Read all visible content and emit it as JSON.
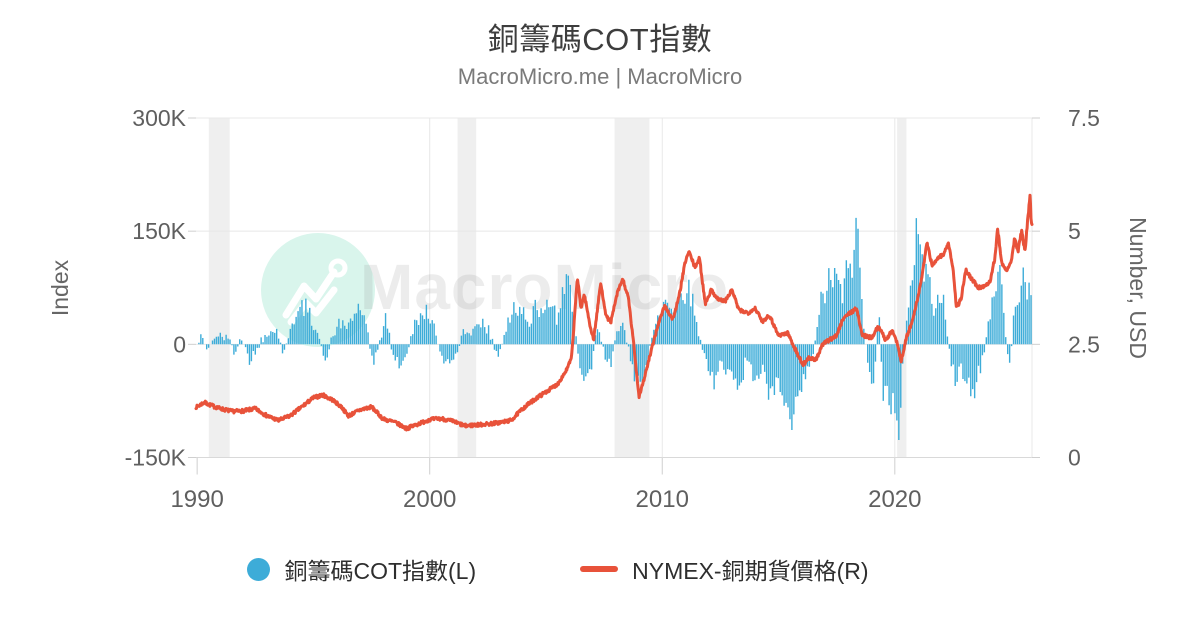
{
  "header": {
    "title": "銅籌碼COT指數",
    "subtitle": "MacroMicro.me | MacroMicro"
  },
  "watermark": {
    "text": "MacroMicro",
    "icon": "macromicro-logo"
  },
  "legend": {
    "items": [
      {
        "label": "銅籌碼COT指數(L)",
        "marker": "circle",
        "color": "#3dacd8"
      },
      {
        "label": "NYMEX-銅期貨價格(R)",
        "marker": "line",
        "color": "#e8523a"
      }
    ]
  },
  "colors": {
    "bar": "#3dacd8",
    "line": "#e8523a",
    "grid": "#e8e8e8",
    "axis_line": "#d9d9d9",
    "tick_mark": "#cfcfcf",
    "recession_band": "#efefef",
    "axis_text": "#5f5f5f",
    "axis_title_text": "#666666",
    "title": "#3d3d3d",
    "subtitle": "#7a7a7a",
    "watermark_circle": "#d9f5ec",
    "watermark_icon": "#ffffff",
    "watermark_text": "#8a8a8a"
  },
  "chart_data": {
    "type": "bar+line combo, dual axis",
    "title": "銅籌碼COT指數",
    "subtitle": "MacroMicro.me | MacroMicro",
    "x_axis": {
      "range": [
        1989.95,
        2025.9
      ],
      "ticks": [
        {
          "label": "1990",
          "value": 1990
        },
        {
          "label": "2000",
          "value": 2000
        },
        {
          "label": "2010",
          "value": 2010
        },
        {
          "label": "2020",
          "value": 2020
        }
      ]
    },
    "left_axis": {
      "title": "Index",
      "unit": "thousand contracts",
      "range": [
        -150,
        300
      ],
      "ticks": [
        {
          "label": "300K",
          "value": 300
        },
        {
          "label": "150K",
          "value": 150
        },
        {
          "label": "0",
          "value": 0
        },
        {
          "label": "-150K",
          "value": -150
        }
      ]
    },
    "right_axis": {
      "title": "Number, USD",
      "range": [
        0,
        7.5
      ],
      "ticks": [
        {
          "label": "7.5",
          "value": 7.5
        },
        {
          "label": "5",
          "value": 5
        },
        {
          "label": "2.5",
          "value": 2.5
        },
        {
          "label": "0",
          "value": 0
        }
      ]
    },
    "recession_bands": [
      [
        1990.5,
        1991.4
      ],
      [
        2001.2,
        2002.0
      ],
      [
        2007.95,
        2009.45
      ],
      [
        2020.1,
        2020.5
      ]
    ],
    "series": [
      {
        "name": "銅籌碼COT指數(L)",
        "type": "bar",
        "axis": "left",
        "color": "#3dacd8",
        "points": [
          [
            1990.0,
            4
          ],
          [
            1990.2,
            9
          ],
          [
            1990.45,
            -8
          ],
          [
            1990.7,
            6
          ],
          [
            1991.0,
            14
          ],
          [
            1991.3,
            8
          ],
          [
            1991.6,
            -10
          ],
          [
            1991.9,
            12
          ],
          [
            1992.2,
            -22
          ],
          [
            1992.5,
            -12
          ],
          [
            1992.8,
            8
          ],
          [
            1993.1,
            18
          ],
          [
            1993.4,
            24
          ],
          [
            1993.7,
            -12
          ],
          [
            1994.0,
            18
          ],
          [
            1994.3,
            42
          ],
          [
            1994.6,
            55
          ],
          [
            1994.9,
            38
          ],
          [
            1995.2,
            14
          ],
          [
            1995.5,
            -22
          ],
          [
            1995.8,
            10
          ],
          [
            1996.1,
            28
          ],
          [
            1996.4,
            18
          ],
          [
            1996.7,
            38
          ],
          [
            1997.0,
            46
          ],
          [
            1997.3,
            22
          ],
          [
            1997.6,
            -28
          ],
          [
            1997.9,
            10
          ],
          [
            1998.1,
            34
          ],
          [
            1998.4,
            -8
          ],
          [
            1998.7,
            -30
          ],
          [
            1999.0,
            -18
          ],
          [
            1999.3,
            26
          ],
          [
            1999.6,
            36
          ],
          [
            1999.9,
            44
          ],
          [
            2000.2,
            22
          ],
          [
            2000.5,
            -18
          ],
          [
            2000.8,
            -26
          ],
          [
            2001.1,
            -20
          ],
          [
            2001.4,
            12
          ],
          [
            2001.7,
            18
          ],
          [
            2002.0,
            26
          ],
          [
            2002.3,
            30
          ],
          [
            2002.6,
            14
          ],
          [
            2002.9,
            -16
          ],
          [
            2003.2,
            12
          ],
          [
            2003.5,
            42
          ],
          [
            2003.8,
            54
          ],
          [
            2004.0,
            48
          ],
          [
            2004.3,
            22
          ],
          [
            2004.6,
            52
          ],
          [
            2004.9,
            40
          ],
          [
            2005.2,
            55
          ],
          [
            2005.5,
            35
          ],
          [
            2005.75,
            65
          ],
          [
            2005.95,
            82
          ],
          [
            2006.15,
            60
          ],
          [
            2006.4,
            -25
          ],
          [
            2006.7,
            -40
          ],
          [
            2006.95,
            -28
          ],
          [
            2007.2,
            25
          ],
          [
            2007.5,
            -12
          ],
          [
            2007.8,
            -30
          ],
          [
            2008.1,
            28
          ],
          [
            2008.35,
            20
          ],
          [
            2008.6,
            -15
          ],
          [
            2008.8,
            -50
          ],
          [
            2009.05,
            -62
          ],
          [
            2009.3,
            -30
          ],
          [
            2009.6,
            15
          ],
          [
            2009.9,
            45
          ],
          [
            2010.2,
            62
          ],
          [
            2010.5,
            40
          ],
          [
            2010.8,
            70
          ],
          [
            2011.05,
            78
          ],
          [
            2011.3,
            55
          ],
          [
            2011.6,
            15
          ],
          [
            2011.9,
            -25
          ],
          [
            2012.2,
            -48
          ],
          [
            2012.5,
            -20
          ],
          [
            2012.8,
            -38
          ],
          [
            2013.1,
            -62
          ],
          [
            2013.4,
            -45
          ],
          [
            2013.7,
            -18
          ],
          [
            2014.0,
            -52
          ],
          [
            2014.3,
            -24
          ],
          [
            2014.6,
            -60
          ],
          [
            2015.0,
            -48
          ],
          [
            2015.3,
            -74
          ],
          [
            2015.6,
            -86
          ],
          [
            2015.9,
            -56
          ],
          [
            2016.2,
            -40
          ],
          [
            2016.5,
            -12
          ],
          [
            2016.8,
            52
          ],
          [
            2017.1,
            78
          ],
          [
            2017.4,
            98
          ],
          [
            2017.7,
            62
          ],
          [
            2018.0,
            96
          ],
          [
            2018.25,
            128
          ],
          [
            2018.45,
            140
          ],
          [
            2018.65,
            30
          ],
          [
            2018.9,
            -48
          ],
          [
            2019.1,
            -72
          ],
          [
            2019.3,
            52
          ],
          [
            2019.5,
            -64
          ],
          [
            2019.75,
            -88
          ],
          [
            2020.0,
            -70
          ],
          [
            2020.15,
            -108
          ],
          [
            2020.35,
            -30
          ],
          [
            2020.55,
            48
          ],
          [
            2020.75,
            98
          ],
          [
            2020.95,
            158
          ],
          [
            2021.15,
            120
          ],
          [
            2021.4,
            86
          ],
          [
            2021.65,
            56
          ],
          [
            2021.9,
            74
          ],
          [
            2022.15,
            40
          ],
          [
            2022.4,
            -20
          ],
          [
            2022.6,
            -52
          ],
          [
            2022.85,
            -28
          ],
          [
            2023.1,
            -58
          ],
          [
            2023.35,
            -66
          ],
          [
            2023.6,
            -34
          ],
          [
            2023.85,
            -12
          ],
          [
            2024.1,
            42
          ],
          [
            2024.35,
            84
          ],
          [
            2024.55,
            96
          ],
          [
            2024.75,
            20
          ],
          [
            2024.9,
            -35
          ],
          [
            2025.1,
            30
          ],
          [
            2025.3,
            58
          ],
          [
            2025.5,
            92
          ],
          [
            2025.7,
            62
          ],
          [
            2025.87,
            72
          ]
        ]
      },
      {
        "name": "NYMEX-銅期貨價格(R)",
        "type": "line",
        "axis": "right",
        "color": "#e8523a",
        "points": [
          [
            1990.0,
            1.12
          ],
          [
            1990.3,
            1.22
          ],
          [
            1990.6,
            1.15
          ],
          [
            1991.0,
            1.08
          ],
          [
            1991.5,
            1.02
          ],
          [
            1992.0,
            1.03
          ],
          [
            1992.5,
            1.08
          ],
          [
            1993.0,
            0.92
          ],
          [
            1993.5,
            0.82
          ],
          [
            1994.0,
            0.92
          ],
          [
            1994.5,
            1.12
          ],
          [
            1995.0,
            1.32
          ],
          [
            1995.4,
            1.38
          ],
          [
            1995.8,
            1.28
          ],
          [
            1996.2,
            1.12
          ],
          [
            1996.5,
            0.92
          ],
          [
            1997.0,
            1.05
          ],
          [
            1997.5,
            1.12
          ],
          [
            1998.0,
            0.85
          ],
          [
            1998.5,
            0.78
          ],
          [
            1999.0,
            0.64
          ],
          [
            1999.5,
            0.74
          ],
          [
            2000.0,
            0.84
          ],
          [
            2000.5,
            0.86
          ],
          [
            2001.0,
            0.8
          ],
          [
            2001.5,
            0.7
          ],
          [
            2002.0,
            0.72
          ],
          [
            2002.5,
            0.74
          ],
          [
            2003.0,
            0.77
          ],
          [
            2003.5,
            0.82
          ],
          [
            2004.0,
            1.08
          ],
          [
            2004.5,
            1.28
          ],
          [
            2005.0,
            1.45
          ],
          [
            2005.5,
            1.62
          ],
          [
            2005.9,
            1.95
          ],
          [
            2006.1,
            2.2
          ],
          [
            2006.35,
            3.98
          ],
          [
            2006.5,
            3.3
          ],
          [
            2006.65,
            3.6
          ],
          [
            2006.9,
            2.9
          ],
          [
            2007.05,
            2.6
          ],
          [
            2007.35,
            3.85
          ],
          [
            2007.6,
            3.1
          ],
          [
            2007.8,
            3.0
          ],
          [
            2008.05,
            3.6
          ],
          [
            2008.3,
            3.95
          ],
          [
            2008.55,
            3.5
          ],
          [
            2008.75,
            2.6
          ],
          [
            2009.0,
            1.35
          ],
          [
            2009.2,
            1.7
          ],
          [
            2009.5,
            2.3
          ],
          [
            2009.8,
            2.9
          ],
          [
            2010.1,
            3.35
          ],
          [
            2010.45,
            3.05
          ],
          [
            2010.7,
            3.5
          ],
          [
            2011.0,
            4.35
          ],
          [
            2011.15,
            4.55
          ],
          [
            2011.4,
            4.2
          ],
          [
            2011.6,
            4.4
          ],
          [
            2011.85,
            3.4
          ],
          [
            2012.1,
            3.7
          ],
          [
            2012.4,
            3.5
          ],
          [
            2012.7,
            3.45
          ],
          [
            2013.0,
            3.7
          ],
          [
            2013.3,
            3.25
          ],
          [
            2013.7,
            3.2
          ],
          [
            2014.0,
            3.3
          ],
          [
            2014.3,
            3.0
          ],
          [
            2014.6,
            3.15
          ],
          [
            2015.0,
            2.7
          ],
          [
            2015.4,
            2.75
          ],
          [
            2015.8,
            2.3
          ],
          [
            2016.05,
            2.05
          ],
          [
            2016.3,
            2.2
          ],
          [
            2016.6,
            2.15
          ],
          [
            2016.9,
            2.5
          ],
          [
            2017.2,
            2.6
          ],
          [
            2017.5,
            2.7
          ],
          [
            2017.8,
            3.1
          ],
          [
            2018.1,
            3.2
          ],
          [
            2018.35,
            3.3
          ],
          [
            2018.6,
            2.7
          ],
          [
            2019.0,
            2.65
          ],
          [
            2019.3,
            2.9
          ],
          [
            2019.6,
            2.6
          ],
          [
            2019.9,
            2.8
          ],
          [
            2020.1,
            2.55
          ],
          [
            2020.27,
            2.12
          ],
          [
            2020.5,
            2.65
          ],
          [
            2020.75,
            3.0
          ],
          [
            2021.0,
            3.55
          ],
          [
            2021.2,
            4.1
          ],
          [
            2021.38,
            4.75
          ],
          [
            2021.6,
            4.25
          ],
          [
            2021.85,
            4.4
          ],
          [
            2022.1,
            4.5
          ],
          [
            2022.3,
            4.72
          ],
          [
            2022.5,
            4.2
          ],
          [
            2022.65,
            3.3
          ],
          [
            2022.85,
            3.5
          ],
          [
            2023.05,
            4.15
          ],
          [
            2023.3,
            3.95
          ],
          [
            2023.6,
            3.75
          ],
          [
            2023.9,
            3.8
          ],
          [
            2024.1,
            3.9
          ],
          [
            2024.3,
            4.4
          ],
          [
            2024.42,
            5.05
          ],
          [
            2024.6,
            4.3
          ],
          [
            2024.8,
            4.15
          ],
          [
            2025.0,
            4.3
          ],
          [
            2025.15,
            4.85
          ],
          [
            2025.3,
            4.55
          ],
          [
            2025.45,
            5.0
          ],
          [
            2025.6,
            4.55
          ],
          [
            2025.72,
            5.3
          ],
          [
            2025.82,
            5.78
          ],
          [
            2025.87,
            5.15
          ]
        ]
      }
    ]
  }
}
